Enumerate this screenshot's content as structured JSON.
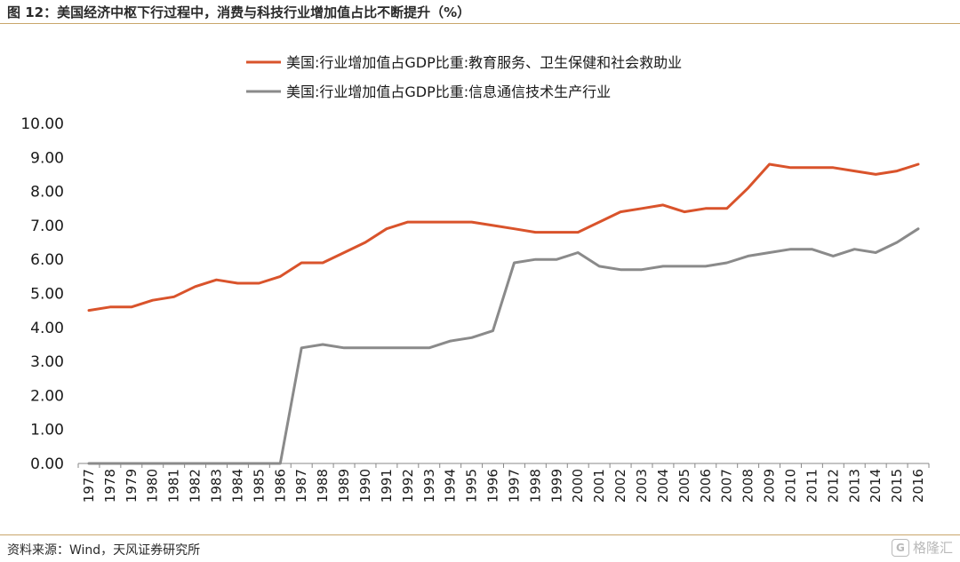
{
  "figure": {
    "title": "图 12：美国经济中枢下行过程中，消费与科技行业增加值占比不断提升（%）",
    "source": "资料来源：Wind，天风证券研究所",
    "watermark": "格隆汇",
    "watermark_icon": "G"
  },
  "colors": {
    "accent_rule": "#c9a66b",
    "series_1": "#d9532b",
    "series_2": "#8a8a8a",
    "axis": "#888888"
  },
  "chart_data": {
    "type": "line",
    "x": [
      "1977",
      "1978",
      "1979",
      "1980",
      "1981",
      "1982",
      "1983",
      "1984",
      "1985",
      "1986",
      "1987",
      "1988",
      "1989",
      "1990",
      "1991",
      "1992",
      "1993",
      "1994",
      "1995",
      "1996",
      "1997",
      "1998",
      "1999",
      "2000",
      "2001",
      "2002",
      "2003",
      "2004",
      "2005",
      "2006",
      "2007",
      "2008",
      "2009",
      "2010",
      "2011",
      "2012",
      "2013",
      "2014",
      "2015",
      "2016"
    ],
    "ylim": [
      0,
      10
    ],
    "yticks": [
      "0.00",
      "1.00",
      "2.00",
      "3.00",
      "4.00",
      "5.00",
      "6.00",
      "7.00",
      "8.00",
      "9.00",
      "10.00"
    ],
    "grid": false,
    "legend_position": "top",
    "series": [
      {
        "name": "美国:行业增加值占GDP比重:教育服务、卫生保健和社会救助业",
        "values": [
          4.5,
          4.6,
          4.6,
          4.8,
          4.9,
          5.2,
          5.4,
          5.3,
          5.3,
          5.5,
          5.9,
          5.9,
          6.2,
          6.5,
          6.9,
          7.1,
          7.1,
          7.1,
          7.1,
          7.0,
          6.9,
          6.8,
          6.8,
          6.8,
          7.1,
          7.4,
          7.5,
          7.6,
          7.4,
          7.5,
          7.5,
          8.1,
          8.8,
          8.7,
          8.7,
          8.7,
          8.6,
          8.5,
          8.6,
          8.8
        ]
      },
      {
        "name": "美国:行业增加值占GDP比重:信息通信技术生产行业",
        "values": [
          0,
          0,
          0,
          0,
          0,
          0,
          0,
          0,
          0,
          0,
          3.4,
          3.5,
          3.4,
          3.4,
          3.4,
          3.4,
          3.4,
          3.6,
          3.7,
          3.9,
          5.9,
          6.0,
          6.0,
          6.2,
          5.8,
          5.7,
          5.7,
          5.8,
          5.8,
          5.8,
          5.9,
          6.1,
          6.2,
          6.3,
          6.3,
          6.1,
          6.3,
          6.2,
          6.5,
          6.9
        ]
      }
    ]
  }
}
